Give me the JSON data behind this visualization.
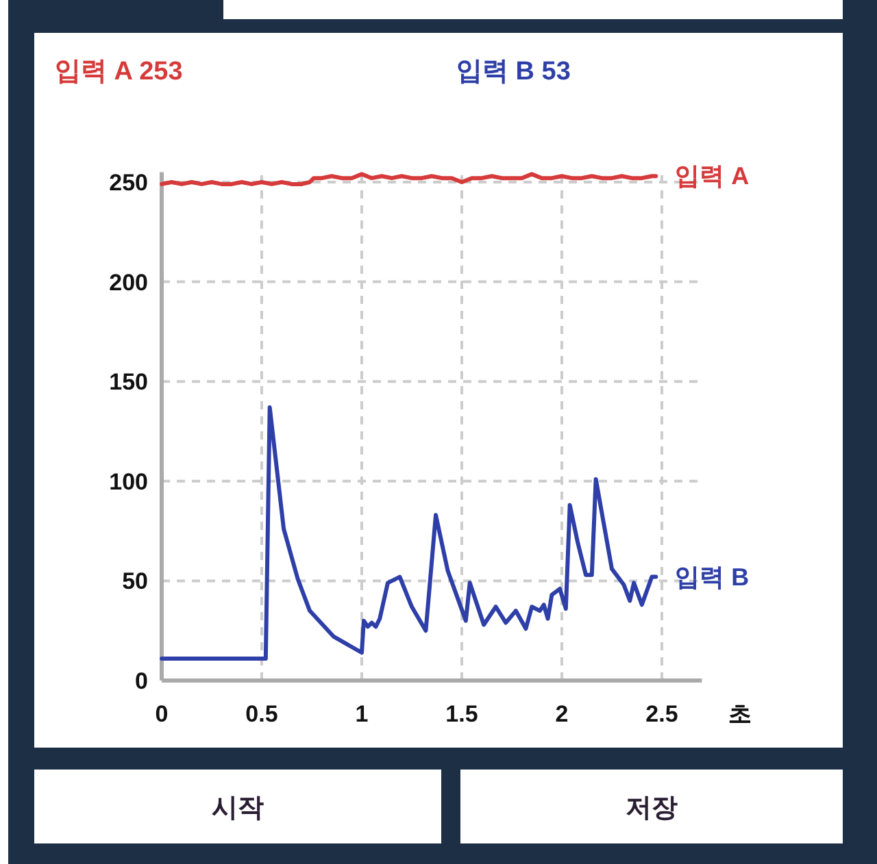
{
  "chart_data": {
    "type": "line",
    "xlabel": "초",
    "xlim": [
      0,
      2.7
    ],
    "ylim": [
      0,
      255
    ],
    "xticks": [
      0,
      0.5,
      1,
      1.5,
      2,
      2.5
    ],
    "yticks": [
      0,
      50,
      100,
      150,
      200,
      250
    ],
    "grid": true,
    "legend": false,
    "marker": "none",
    "line_style": "solid",
    "annotations": [
      "입력 A 253",
      "입력 B 53",
      "시작",
      "저장"
    ],
    "series": [
      {
        "name": "입력 A",
        "color": "#d63a3a",
        "x": [
          0,
          0.05,
          0.1,
          0.15,
          0.2,
          0.25,
          0.3,
          0.35,
          0.4,
          0.45,
          0.5,
          0.55,
          0.6,
          0.65,
          0.7,
          0.74,
          0.76,
          0.8,
          0.85,
          0.9,
          0.95,
          1.0,
          1.05,
          1.1,
          1.15,
          1.2,
          1.25,
          1.3,
          1.35,
          1.4,
          1.45,
          1.5,
          1.55,
          1.6,
          1.65,
          1.7,
          1.75,
          1.8,
          1.85,
          1.9,
          1.95,
          2.0,
          2.05,
          2.1,
          2.15,
          2.2,
          2.25,
          2.3,
          2.35,
          2.4,
          2.45,
          2.47
        ],
        "values": [
          249,
          250,
          249,
          250,
          249,
          250,
          249,
          249,
          250,
          249,
          250,
          249,
          250,
          249,
          249,
          250,
          252,
          252,
          253,
          252,
          252,
          254,
          252,
          253,
          252,
          253,
          252,
          252,
          253,
          252,
          252,
          250,
          252,
          252,
          253,
          252,
          252,
          252,
          254,
          252,
          252,
          253,
          252,
          252,
          253,
          252,
          252,
          253,
          252,
          252,
          253,
          253
        ]
      },
      {
        "name": "입력 B",
        "color": "#2e3fa8",
        "x": [
          0,
          0.1,
          0.2,
          0.3,
          0.4,
          0.52,
          0.54,
          0.61,
          0.68,
          0.74,
          0.86,
          1.0,
          1.01,
          1.03,
          1.05,
          1.07,
          1.09,
          1.13,
          1.19,
          1.25,
          1.32,
          1.37,
          1.43,
          1.52,
          1.54,
          1.61,
          1.67,
          1.72,
          1.77,
          1.82,
          1.85,
          1.89,
          1.91,
          1.93,
          1.95,
          1.99,
          2.02,
          2.04,
          2.08,
          2.12,
          2.15,
          2.17,
          2.25,
          2.31,
          2.34,
          2.36,
          2.4,
          2.45,
          2.47
        ],
        "values": [
          11,
          11,
          11,
          11,
          11,
          11,
          137,
          76,
          51,
          35,
          22,
          14,
          30,
          27,
          29,
          27,
          31,
          49,
          52,
          37,
          25,
          83,
          55,
          30,
          49,
          28,
          37,
          29,
          35,
          26,
          37,
          35,
          38,
          31,
          43,
          46,
          36,
          88,
          69,
          53,
          53,
          101,
          56,
          48,
          40,
          49,
          38,
          52,
          52
        ]
      }
    ]
  }
}
